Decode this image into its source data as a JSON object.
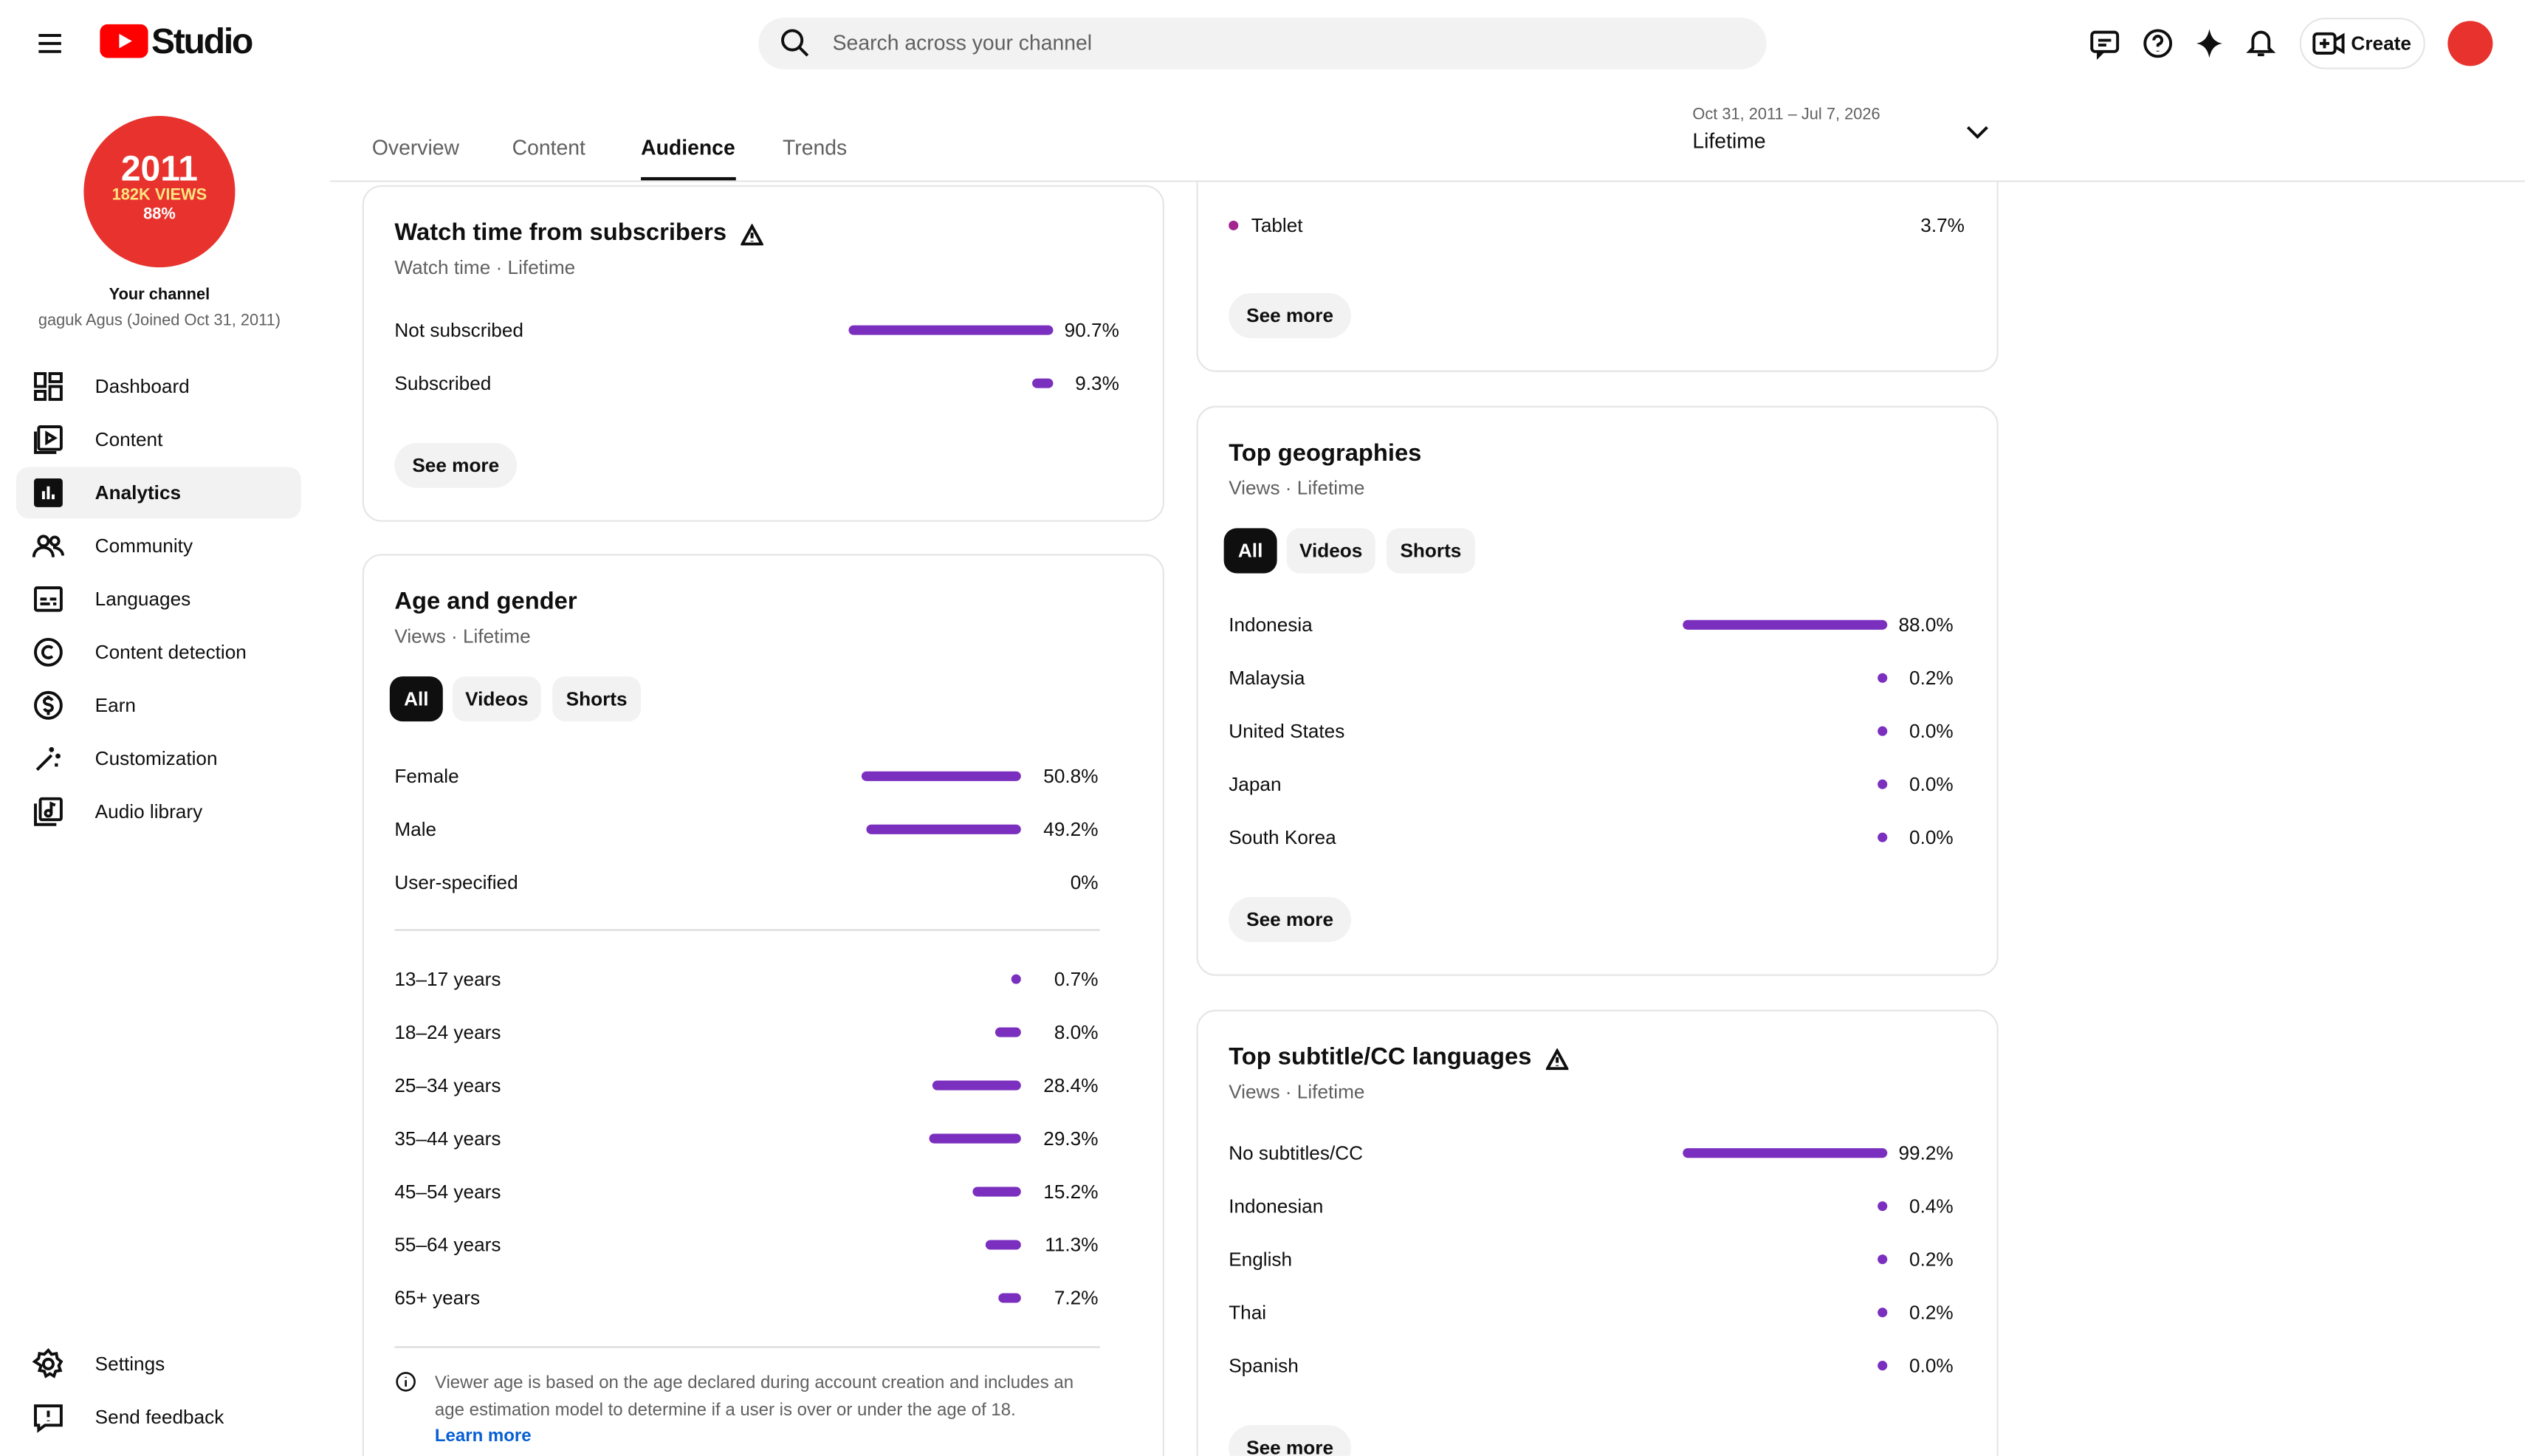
{
  "header": {
    "logo": "Studio",
    "search_placeholder": "Search across your channel",
    "create": "Create"
  },
  "sidebar": {
    "avatar_text": [
      "2011",
      "182K VIEWS",
      "88%"
    ],
    "channel_label": "Your channel",
    "channel_name": "gaguk Agus (Joined Oct 31, 2011)",
    "nav": [
      "Dashboard",
      "Content",
      "Analytics",
      "Community",
      "Languages",
      "Content detection",
      "Earn",
      "Customization",
      "Audio library"
    ],
    "active_nav": 2,
    "footer_nav": [
      "Settings",
      "Send feedback"
    ]
  },
  "tabs": [
    "Overview",
    "Content",
    "Audience",
    "Trends"
  ],
  "active_tab": 2,
  "date_range": {
    "range": "Oct 31, 2011 – Jul 7, 2026",
    "period": "Lifetime"
  },
  "device_card": {
    "rows": [
      {
        "label": "Tablet",
        "value": 3.7,
        "value_label": "3.7%"
      }
    ],
    "see_more": "See more"
  },
  "cards": [
    {
      "title": "Watch time from subscribers",
      "subtitle": "Watch time · Lifetime",
      "warning": true,
      "sections": [
        [
          {
            "label": "Not subscribed",
            "value": 90.7,
            "value_label": "90.7%"
          },
          {
            "label": "Subscribed",
            "value": 9.3,
            "value_label": "9.3%"
          }
        ]
      ],
      "see_more": "See more"
    },
    {
      "title": "Age and gender",
      "subtitle": "Views · Lifetime",
      "warning": false,
      "chips": [
        "All",
        "Videos",
        "Shorts"
      ],
      "selected_chip": 0,
      "sections": [
        [
          {
            "label": "Female",
            "value": 50.8,
            "value_label": "50.8%"
          },
          {
            "label": "Male",
            "value": 49.2,
            "value_label": "49.2%"
          },
          {
            "label": "User-specified",
            "value": 0,
            "value_label": "0%",
            "show_bar": false
          }
        ],
        [
          {
            "label": "13–17 years",
            "value": 0.7,
            "value_label": "0.7%"
          },
          {
            "label": "18–24 years",
            "value": 8.0,
            "value_label": "8.0%"
          },
          {
            "label": "25–34 years",
            "value": 28.4,
            "value_label": "28.4%"
          },
          {
            "label": "35–44 years",
            "value": 29.3,
            "value_label": "29.3%"
          },
          {
            "label": "45–54 years",
            "value": 15.2,
            "value_label": "15.2%"
          },
          {
            "label": "55–64 years",
            "value": 11.3,
            "value_label": "11.3%"
          },
          {
            "label": "65+ years",
            "value": 7.2,
            "value_label": "7.2%"
          }
        ]
      ],
      "note": "Viewer age is based on the age declared during account creation and includes an age estimation model to determine if a user is over or under the age of 18.",
      "learn_more": "Learn more"
    },
    {
      "title": "Top geographies",
      "subtitle": "Views · Lifetime",
      "warning": false,
      "chips": [
        "All",
        "Videos",
        "Shorts"
      ],
      "selected_chip": 0,
      "sections": [
        [
          {
            "label": "Indonesia",
            "value": 88.0,
            "value_label": "88.0%"
          },
          {
            "label": "Malaysia",
            "value": 0.2,
            "value_label": "0.2%"
          },
          {
            "label": "United States",
            "value": 0.0,
            "value_label": "0.0%"
          },
          {
            "label": "Japan",
            "value": 0.0,
            "value_label": "0.0%"
          },
          {
            "label": "South Korea",
            "value": 0.0,
            "value_label": "0.0%"
          }
        ]
      ],
      "see_more": "See more"
    },
    {
      "title": "Top subtitle/CC languages",
      "subtitle": "Views · Lifetime",
      "warning": true,
      "sections": [
        [
          {
            "label": "No subtitles/CC",
            "value": 99.2,
            "value_label": "99.2%"
          },
          {
            "label": "Indonesian",
            "value": 0.4,
            "value_label": "0.4%"
          },
          {
            "label": "English",
            "value": 0.2,
            "value_label": "0.2%"
          },
          {
            "label": "Thai",
            "value": 0.2,
            "value_label": "0.2%"
          },
          {
            "label": "Spanish",
            "value": 0.0,
            "value_label": "0.0%"
          }
        ]
      ],
      "see_more": "See more"
    }
  ]
}
